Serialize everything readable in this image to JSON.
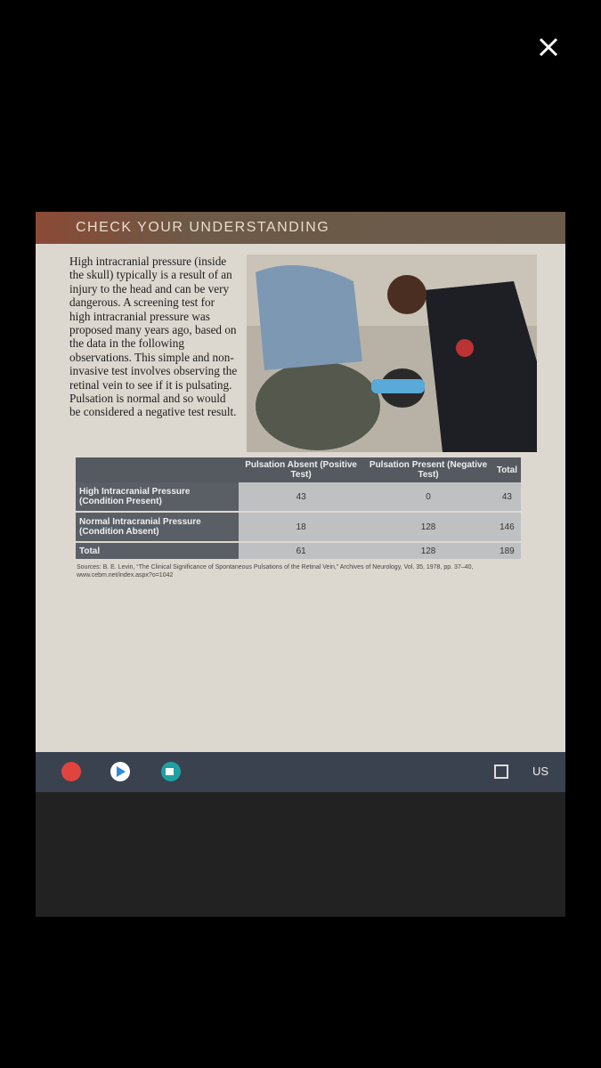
{
  "section_title": "CHECK YOUR UNDERSTANDING",
  "paragraph": "High intracranial pressure (inside the skull) typically is a result of an injury to the head and can be very dangerous. A screening test for high intracranial pressure was proposed many years ago, based on the data in the following observations. This simple and non-invasive test involves observing the retinal vein to see if it is pulsating. Pulsation is normal and so would be considered a negative test result.",
  "table": {
    "columns": [
      "Pulsation Absent (Positive Test)",
      "Pulsation Present (Negative Test)",
      "Total"
    ],
    "rows": [
      [
        "High Intracranial Pressure (Condition Present)",
        43,
        0,
        43
      ],
      [
        "Normal Intracranial Pressure (Condition Absent)",
        18,
        128,
        146
      ],
      [
        "Total",
        61,
        128,
        189
      ]
    ]
  },
  "sources": "Sources: B. E. Levin, “The Clinical Significance of Spontaneous Pulsations of the Retinal Vein,” Archives of Neurology, Vol. 35, 1978, pp. 37–40, www.cebm.net/index.aspx?o=1042",
  "taskbar": {
    "language": "US"
  }
}
